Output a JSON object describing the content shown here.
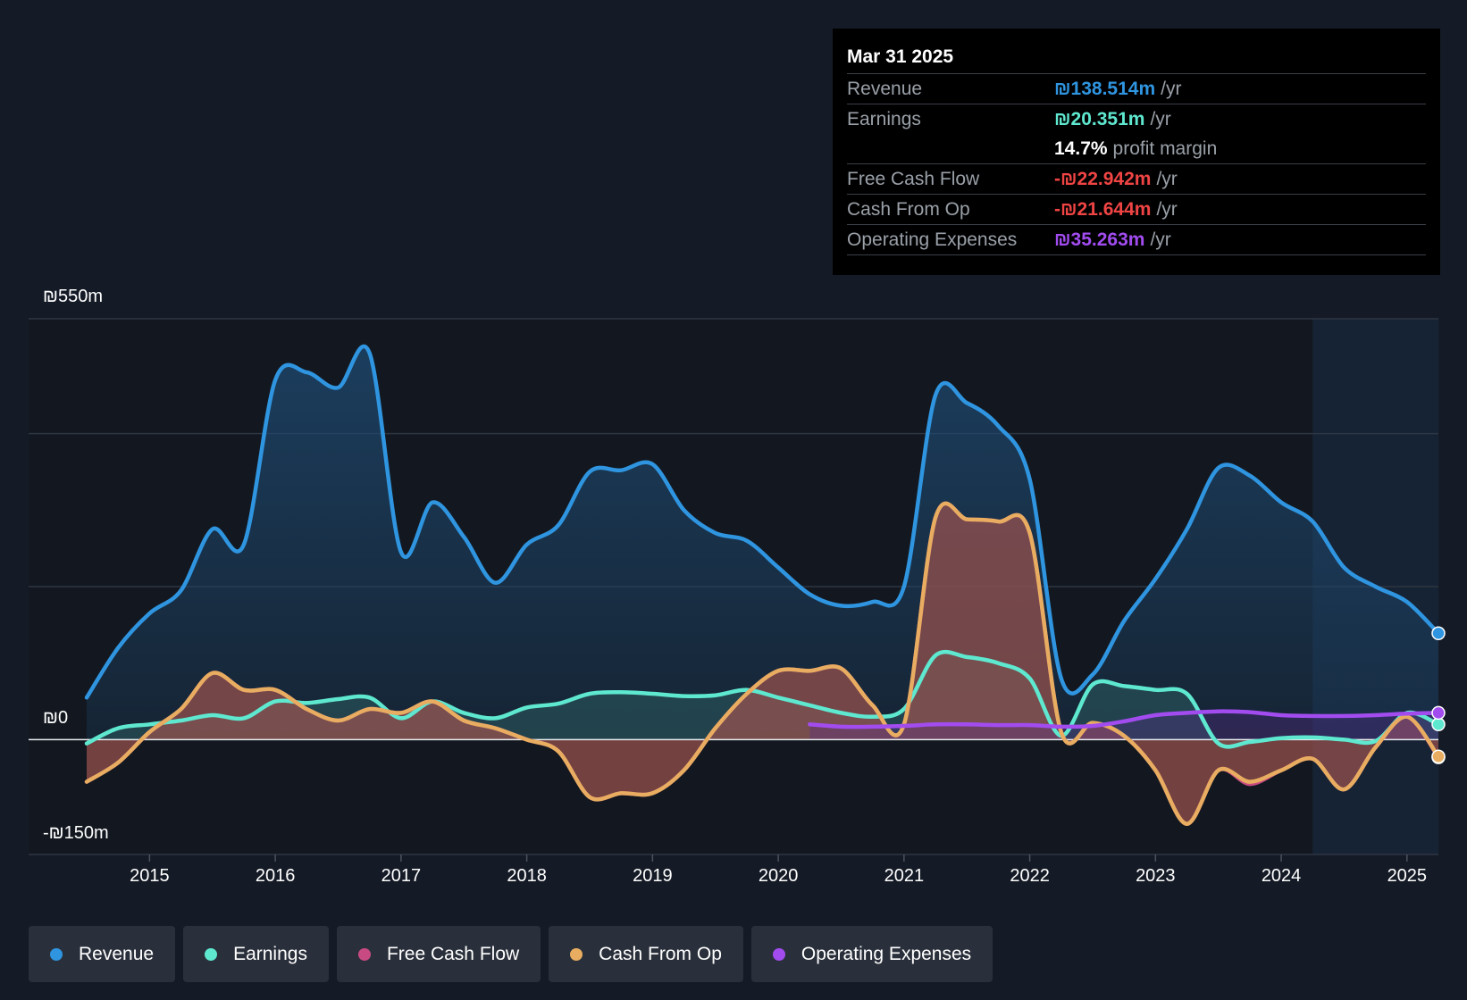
{
  "tooltip": {
    "date": "Mar 31 2025",
    "rows": [
      {
        "label": "Revenue",
        "value": "₪138.514m",
        "unit": "/yr",
        "color": "#2f95e0"
      },
      {
        "label": "Earnings",
        "value": "₪20.351m",
        "unit": "/yr",
        "color": "#5fe8d0"
      },
      {
        "label": "",
        "value": "14.7%",
        "unit": "profit margin",
        "color": "#ffffff"
      },
      {
        "label": "Free Cash Flow",
        "value": "-₪22.942m",
        "unit": "/yr",
        "color": "#f04444"
      },
      {
        "label": "Cash From Op",
        "value": "-₪21.644m",
        "unit": "/yr",
        "color": "#f04444"
      },
      {
        "label": "Operating Expenses",
        "value": "₪35.263m",
        "unit": "/yr",
        "color": "#a24cf0"
      }
    ]
  },
  "legend": [
    {
      "label": "Revenue",
      "color": "#2f95e0"
    },
    {
      "label": "Earnings",
      "color": "#5fe8d0"
    },
    {
      "label": "Free Cash Flow",
      "color": "#c84a82"
    },
    {
      "label": "Cash From Op",
      "color": "#e8ad60"
    },
    {
      "label": "Operating Expenses",
      "color": "#a24cf0"
    }
  ],
  "chart_data": {
    "type": "area",
    "title": "",
    "xlabel": "",
    "ylabel": "",
    "ylim": [
      -150,
      550
    ],
    "y_tick_labels": [
      "₪550m",
      "₪0",
      "-₪150m"
    ],
    "x_tick_labels": [
      "2015",
      "2016",
      "2017",
      "2018",
      "2019",
      "2020",
      "2021",
      "2022",
      "2023",
      "2024",
      "2025"
    ],
    "xlim": [
      2014.5,
      2025.25
    ],
    "forecast_start": 2024.25,
    "series": [
      {
        "name": "Revenue",
        "color": "#2f95e0",
        "points": [
          [
            2014.5,
            55
          ],
          [
            2014.75,
            120
          ],
          [
            2015.0,
            165
          ],
          [
            2015.25,
            195
          ],
          [
            2015.5,
            275
          ],
          [
            2015.75,
            255
          ],
          [
            2016.0,
            470
          ],
          [
            2016.25,
            480
          ],
          [
            2016.5,
            460
          ],
          [
            2016.75,
            505
          ],
          [
            2017.0,
            245
          ],
          [
            2017.25,
            310
          ],
          [
            2017.5,
            265
          ],
          [
            2017.75,
            205
          ],
          [
            2018.0,
            255
          ],
          [
            2018.25,
            280
          ],
          [
            2018.5,
            350
          ],
          [
            2018.75,
            352
          ],
          [
            2019.0,
            360
          ],
          [
            2019.25,
            300
          ],
          [
            2019.5,
            270
          ],
          [
            2019.75,
            260
          ],
          [
            2020.0,
            225
          ],
          [
            2020.25,
            190
          ],
          [
            2020.5,
            175
          ],
          [
            2020.75,
            180
          ],
          [
            2021.0,
            200
          ],
          [
            2021.25,
            450
          ],
          [
            2021.5,
            440
          ],
          [
            2021.75,
            410
          ],
          [
            2022.0,
            340
          ],
          [
            2022.25,
            80
          ],
          [
            2022.5,
            85
          ],
          [
            2022.75,
            155
          ],
          [
            2023.0,
            210
          ],
          [
            2023.25,
            275
          ],
          [
            2023.5,
            355
          ],
          [
            2023.75,
            345
          ],
          [
            2024.0,
            310
          ],
          [
            2024.25,
            285
          ],
          [
            2024.5,
            225
          ],
          [
            2024.75,
            200
          ],
          [
            2025.0,
            180
          ],
          [
            2025.25,
            139
          ]
        ]
      },
      {
        "name": "Earnings",
        "color": "#5fe8d0",
        "points": [
          [
            2014.5,
            -5
          ],
          [
            2014.75,
            15
          ],
          [
            2015.0,
            20
          ],
          [
            2015.25,
            25
          ],
          [
            2015.5,
            32
          ],
          [
            2015.75,
            28
          ],
          [
            2016.0,
            50
          ],
          [
            2016.25,
            48
          ],
          [
            2016.5,
            53
          ],
          [
            2016.75,
            55
          ],
          [
            2017.0,
            28
          ],
          [
            2017.25,
            50
          ],
          [
            2017.5,
            35
          ],
          [
            2017.75,
            28
          ],
          [
            2018.0,
            42
          ],
          [
            2018.25,
            47
          ],
          [
            2018.5,
            60
          ],
          [
            2018.75,
            62
          ],
          [
            2019.0,
            60
          ],
          [
            2019.25,
            57
          ],
          [
            2019.5,
            58
          ],
          [
            2019.75,
            65
          ],
          [
            2020.0,
            55
          ],
          [
            2020.25,
            45
          ],
          [
            2020.5,
            35
          ],
          [
            2020.75,
            30
          ],
          [
            2021.0,
            40
          ],
          [
            2021.25,
            110
          ],
          [
            2021.5,
            108
          ],
          [
            2021.75,
            100
          ],
          [
            2022.0,
            80
          ],
          [
            2022.25,
            5
          ],
          [
            2022.5,
            72
          ],
          [
            2022.75,
            70
          ],
          [
            2023.0,
            65
          ],
          [
            2023.25,
            60
          ],
          [
            2023.5,
            -5
          ],
          [
            2023.75,
            -3
          ],
          [
            2024.0,
            2
          ],
          [
            2024.25,
            3
          ],
          [
            2024.5,
            0
          ],
          [
            2024.75,
            -2
          ],
          [
            2025.0,
            35
          ],
          [
            2025.25,
            20
          ]
        ]
      },
      {
        "name": "Free Cash Flow",
        "color": "#c84a82",
        "points": [
          [
            2014.5,
            -55
          ],
          [
            2014.75,
            -30
          ],
          [
            2015.0,
            10
          ],
          [
            2015.25,
            40
          ],
          [
            2015.5,
            87
          ],
          [
            2015.75,
            65
          ],
          [
            2016.0,
            65
          ],
          [
            2016.25,
            40
          ],
          [
            2016.5,
            25
          ],
          [
            2016.75,
            40
          ],
          [
            2017.0,
            35
          ],
          [
            2017.25,
            50
          ],
          [
            2017.5,
            25
          ],
          [
            2017.75,
            15
          ],
          [
            2018.0,
            0
          ],
          [
            2018.25,
            -15
          ],
          [
            2018.5,
            -75
          ],
          [
            2018.75,
            -70
          ],
          [
            2019.0,
            -70
          ],
          [
            2019.25,
            -40
          ],
          [
            2019.5,
            15
          ],
          [
            2019.75,
            60
          ],
          [
            2020.0,
            90
          ],
          [
            2020.25,
            90
          ],
          [
            2020.5,
            93
          ],
          [
            2020.75,
            45
          ],
          [
            2021.0,
            20
          ],
          [
            2021.25,
            290
          ],
          [
            2021.5,
            288
          ],
          [
            2021.75,
            285
          ],
          [
            2022.0,
            270
          ],
          [
            2022.25,
            10
          ],
          [
            2022.5,
            22
          ],
          [
            2022.75,
            5
          ],
          [
            2023.0,
            -40
          ],
          [
            2023.25,
            -110
          ],
          [
            2023.5,
            -40
          ],
          [
            2023.75,
            -58
          ],
          [
            2024.0,
            -40
          ],
          [
            2024.25,
            -25
          ],
          [
            2024.5,
            -65
          ],
          [
            2024.75,
            -10
          ],
          [
            2025.0,
            30
          ],
          [
            2025.25,
            -23
          ]
        ]
      },
      {
        "name": "Cash From Op",
        "color": "#e8ad60",
        "points": [
          [
            2014.5,
            -55
          ],
          [
            2014.75,
            -30
          ],
          [
            2015.0,
            10
          ],
          [
            2015.25,
            40
          ],
          [
            2015.5,
            87
          ],
          [
            2015.75,
            65
          ],
          [
            2016.0,
            65
          ],
          [
            2016.25,
            40
          ],
          [
            2016.5,
            25
          ],
          [
            2016.75,
            40
          ],
          [
            2017.0,
            35
          ],
          [
            2017.25,
            50
          ],
          [
            2017.5,
            25
          ],
          [
            2017.75,
            15
          ],
          [
            2018.0,
            0
          ],
          [
            2018.25,
            -15
          ],
          [
            2018.5,
            -75
          ],
          [
            2018.75,
            -70
          ],
          [
            2019.0,
            -70
          ],
          [
            2019.25,
            -40
          ],
          [
            2019.5,
            15
          ],
          [
            2019.75,
            60
          ],
          [
            2020.0,
            90
          ],
          [
            2020.25,
            90
          ],
          [
            2020.5,
            93
          ],
          [
            2020.75,
            45
          ],
          [
            2021.0,
            20
          ],
          [
            2021.25,
            290
          ],
          [
            2021.5,
            288
          ],
          [
            2021.75,
            285
          ],
          [
            2022.0,
            270
          ],
          [
            2022.25,
            10
          ],
          [
            2022.5,
            22
          ],
          [
            2022.75,
            5
          ],
          [
            2023.0,
            -40
          ],
          [
            2023.25,
            -110
          ],
          [
            2023.5,
            -40
          ],
          [
            2023.75,
            -55
          ],
          [
            2024.0,
            -40
          ],
          [
            2024.25,
            -25
          ],
          [
            2024.5,
            -65
          ],
          [
            2024.75,
            -10
          ],
          [
            2025.0,
            30
          ],
          [
            2025.25,
            -22
          ]
        ]
      },
      {
        "name": "Operating Expenses",
        "color": "#a24cf0",
        "points": [
          [
            2020.25,
            20
          ],
          [
            2020.5,
            17
          ],
          [
            2020.75,
            17
          ],
          [
            2021.0,
            18
          ],
          [
            2021.25,
            20
          ],
          [
            2021.5,
            20
          ],
          [
            2021.75,
            19
          ],
          [
            2022.0,
            19
          ],
          [
            2022.25,
            17
          ],
          [
            2022.5,
            18
          ],
          [
            2022.75,
            24
          ],
          [
            2023.0,
            32
          ],
          [
            2023.25,
            35
          ],
          [
            2023.5,
            37
          ],
          [
            2023.75,
            36
          ],
          [
            2024.0,
            32
          ],
          [
            2024.25,
            31
          ],
          [
            2024.5,
            31
          ],
          [
            2024.75,
            32
          ],
          [
            2025.0,
            34
          ],
          [
            2025.25,
            35
          ]
        ]
      }
    ]
  }
}
